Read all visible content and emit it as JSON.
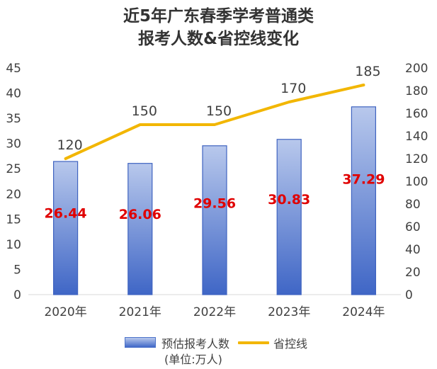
{
  "title_line1": "近5年广东春季学考普通类",
  "title_line2": "报考人数&省控线变化",
  "chart_data": {
    "type": "bar",
    "categories": [
      "2020年",
      "2021年",
      "2022年",
      "2023年",
      "2024年"
    ],
    "series": [
      {
        "name": "预估报考人数",
        "name_sub": "(单位:万人)",
        "type": "bar",
        "axis": "left",
        "values": [
          26.44,
          26.06,
          29.56,
          30.83,
          37.29
        ],
        "color": "#4068c8",
        "data_label_color": "#e00000"
      },
      {
        "name": "省控线",
        "type": "line",
        "axis": "right",
        "values": [
          120,
          150,
          150,
          170,
          185
        ],
        "color": "#f2b600"
      }
    ],
    "y_left": {
      "min": 0,
      "max": 45,
      "ticks": [
        "0",
        "5",
        "10",
        "15",
        "20",
        "25",
        "30",
        "35",
        "40",
        "45"
      ]
    },
    "y_right": {
      "min": 0,
      "max": 200,
      "ticks": [
        "0",
        "20",
        "40",
        "60",
        "80",
        "100",
        "120",
        "140",
        "160",
        "180",
        "200"
      ]
    },
    "grid": false,
    "legend_position": "bottom"
  }
}
